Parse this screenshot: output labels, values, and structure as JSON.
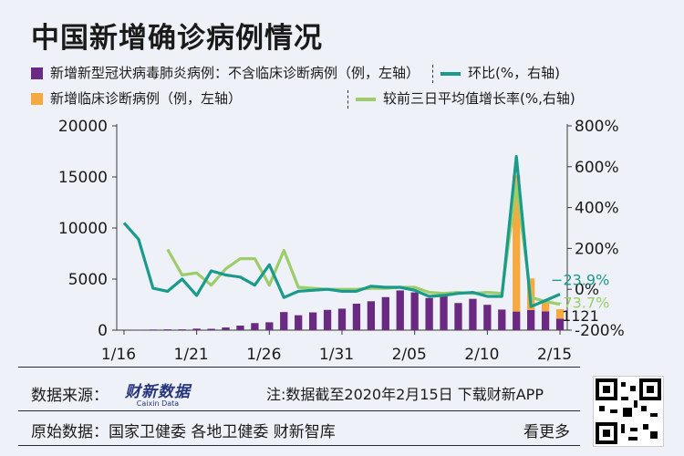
{
  "title": "中国新增确诊病例情况",
  "legend": {
    "bar_purple": "新增新型冠状病毒肺炎病例：不含临床诊断病例（例，左轴）",
    "bar_orange": "新增临床诊断病例（例，左轴）",
    "line_teal": "环比(%，右轴)",
    "line_green": "较前三日平均值增长率(%,右轴)"
  },
  "colors": {
    "purple": "#6a2a82",
    "orange": "#f5a941",
    "teal": "#1a9a8c",
    "green": "#9ccd6a",
    "axis": "#3a3a3a"
  },
  "chart_data": {
    "type": "bar",
    "x_ticks": [
      "1/16",
      "1/21",
      "1/26",
      "1/31",
      "2/05",
      "2/10",
      "2/15"
    ],
    "y_left_ticks": [
      "0",
      "5000",
      "10000",
      "15000",
      "20000"
    ],
    "y_right_ticks": [
      "-200%",
      "0%",
      "200%",
      "400%",
      "600%",
      "800%"
    ],
    "ylim_left": [
      0,
      20000
    ],
    "ylim_right": [
      -200,
      800
    ],
    "categories": [
      "1/16",
      "1/17",
      "1/18",
      "1/19",
      "1/20",
      "1/21",
      "1/22",
      "1/23",
      "1/24",
      "1/25",
      "1/26",
      "1/27",
      "1/28",
      "1/29",
      "1/30",
      "1/31",
      "2/01",
      "2/02",
      "2/03",
      "2/04",
      "2/05",
      "2/06",
      "2/07",
      "2/08",
      "2/09",
      "2/10",
      "2/11",
      "2/12",
      "2/13",
      "2/14",
      "2/15"
    ],
    "series": [
      {
        "name": "新增新型冠状病毒肺炎病例：不含临床诊断病例（例，左轴）",
        "type": "bar",
        "values": [
          4,
          17,
          59,
          77,
          77,
          149,
          131,
          259,
          444,
          688,
          769,
          1771,
          1459,
          1737,
          1982,
          2102,
          2590,
          2829,
          3235,
          3887,
          3694,
          3143,
          3399,
          2656,
          3062,
          2478,
          2015,
          1820,
          1966,
          1843,
          1121
        ]
      },
      {
        "name": "新增临床诊断病例（例，左轴）",
        "type": "bar",
        "values": [
          0,
          0,
          0,
          0,
          0,
          0,
          0,
          0,
          0,
          0,
          0,
          0,
          0,
          0,
          0,
          0,
          0,
          0,
          0,
          0,
          0,
          0,
          0,
          0,
          0,
          0,
          0,
          13332,
          3095,
          1075,
          926
        ]
      },
      {
        "name": "环比(%，右轴)",
        "type": "line",
        "values": [
          null,
          null,
          null,
          null,
          null,
          null,
          null,
          null,
          null,
          null,
          null,
          null,
          null,
          null,
          null,
          null,
          null,
          null,
          null,
          null,
          null,
          null,
          null,
          null,
          null,
          null,
          null,
          null,
          null,
          null,
          null
        ]
      },
      {
        "name": "较前三日平均值增长率(%,右轴)",
        "type": "line",
        "values": [
          null,
          null,
          null,
          null,
          null,
          null,
          null,
          null,
          null,
          null,
          null,
          null,
          null,
          null,
          null,
          null,
          null,
          null,
          null,
          null,
          null,
          null,
          null,
          null,
          null,
          null,
          null,
          null,
          null,
          null,
          null
        ]
      }
    ],
    "teal_values": [
      325,
      245,
      5,
      -10,
      50,
      -30,
      90,
      70,
      60,
      20,
      120,
      -40,
      -10,
      -5,
      0,
      -10,
      -10,
      15,
      10,
      10,
      -5,
      -35,
      -30,
      -20,
      -15,
      -35,
      -35,
      650,
      -85,
      -55,
      -23.9
    ],
    "green_values": [
      null,
      null,
      null,
      195,
      70,
      80,
      20,
      100,
      150,
      150,
      20,
      190,
      10,
      5,
      0,
      0,
      0,
      5,
      5,
      10,
      10,
      -15,
      -20,
      -15,
      -20,
      -15,
      -20,
      510,
      -40,
      -60,
      -73.7
    ],
    "annotations": {
      "teal_last": "−23.9%",
      "green_last": "−73.7%",
      "bar_last": "1121"
    }
  },
  "footer": {
    "source_label": "数据来源：",
    "logo": "财新数据",
    "logo_sub": "Caixin Data",
    "note": "注:数据截至2020年2月15日 下载财新APP",
    "origin": "原始数据：国家卫健委 各地卫健委 财新智库",
    "more": "看更多"
  }
}
